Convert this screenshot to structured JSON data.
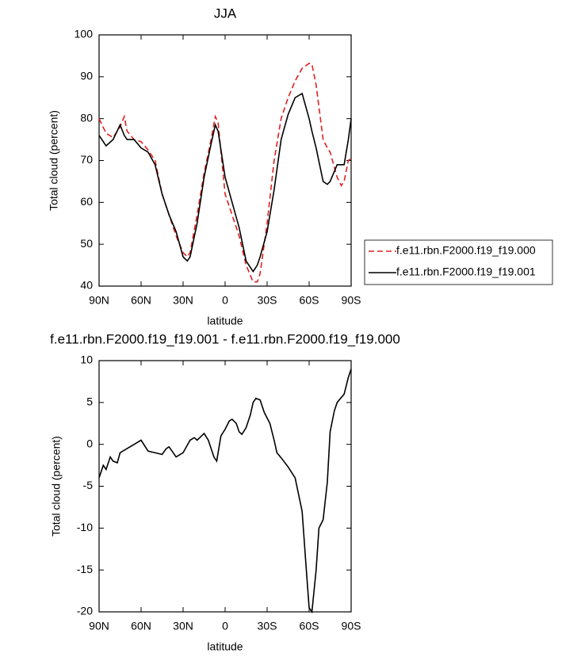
{
  "chart_data": [
    {
      "type": "line",
      "title": "JJA",
      "ylabel": "Total cloud (percent)",
      "xlabel": "latitude",
      "x": [
        90,
        85,
        80,
        75,
        72,
        70,
        65,
        60,
        55,
        50,
        45,
        40,
        35,
        30,
        27,
        25,
        20,
        15,
        10,
        7,
        5,
        0,
        -5,
        -10,
        -15,
        -20,
        -23,
        -25,
        -30,
        -35,
        -40,
        -45,
        -50,
        -55,
        -60,
        -62,
        -65,
        -70,
        -73,
        -75,
        -80,
        -83,
        -85,
        -88,
        -90
      ],
      "series": [
        {
          "name": "f.e11.rbn.F2000.f19_f19.000",
          "color": "#e02020",
          "style": "dashed",
          "values": [
            80,
            76.5,
            75.5,
            78,
            80.5,
            77,
            75,
            74.5,
            72.5,
            70,
            62,
            57,
            52,
            48,
            47,
            48,
            57,
            67,
            75,
            80.5,
            79,
            62,
            57,
            52,
            45,
            41,
            41,
            43,
            55,
            70,
            80,
            85,
            89,
            92,
            93.2,
            93,
            88,
            75,
            73,
            72,
            66,
            64,
            65,
            70,
            70.5
          ]
        },
        {
          "name": "f.e11.rbn.F2000.f19_f19.001",
          "color": "#000000",
          "style": "solid",
          "values": [
            76,
            73.5,
            75,
            78.5,
            76,
            75,
            75,
            73,
            72,
            69,
            62,
            57,
            53,
            47,
            46,
            47,
            55,
            66,
            74,
            78.5,
            77,
            66,
            60,
            54,
            46,
            43.5,
            45,
            47,
            53,
            63,
            75,
            81,
            85,
            86,
            80,
            77,
            73,
            65,
            64.3,
            65,
            69,
            69,
            69,
            75,
            80
          ]
        }
      ],
      "xlim": [
        90,
        -90
      ],
      "xticks": [
        {
          "value": 90,
          "label": "90N"
        },
        {
          "value": 60,
          "label": "60N"
        },
        {
          "value": 30,
          "label": "30N"
        },
        0,
        {
          "value": -30,
          "label": "30S"
        },
        {
          "value": -60,
          "label": "60S"
        },
        {
          "value": -90,
          "label": "90S"
        }
      ],
      "ylim": [
        40,
        100
      ],
      "yticks": [
        40,
        50,
        60,
        70,
        80,
        90,
        100
      ],
      "legend": "outside right"
    },
    {
      "type": "line",
      "title": "f.e11.rbn.F2000.f19_f19.001 - f.e11.rbn.F2000.f19_f19.000",
      "ylabel": "Total cloud (percent)",
      "xlabel": "latitude",
      "x": [
        90,
        87,
        85,
        82,
        80,
        77,
        75,
        70,
        65,
        60,
        55,
        50,
        45,
        42,
        40,
        35,
        30,
        25,
        22,
        20,
        15,
        12,
        8,
        6,
        3,
        0,
        -3,
        -5,
        -8,
        -10,
        -12,
        -15,
        -18,
        -20,
        -22,
        -25,
        -28,
        -32,
        -35,
        -37,
        -40,
        -45,
        -50,
        -55,
        -58,
        -60,
        -62,
        -65,
        -67,
        -70,
        -73,
        -75,
        -78,
        -80,
        -85,
        -88,
        -90
      ],
      "series": [
        {
          "color": "#000000",
          "style": "solid",
          "values": [
            -4,
            -2.5,
            -3,
            -1.5,
            -2,
            -2.2,
            -1,
            -0.5,
            0,
            0.5,
            -0.8,
            -1,
            -1.2,
            -0.5,
            -0.3,
            -1.5,
            -1,
            0.5,
            0.8,
            0.5,
            1.3,
            0.5,
            -1.5,
            -2,
            1,
            1.8,
            2.8,
            3,
            2.5,
            1.5,
            1.2,
            2,
            3.5,
            5,
            5.5,
            5.3,
            3.8,
            2.5,
            0.5,
            -1,
            -1.6,
            -2.7,
            -4,
            -8,
            -15,
            -19.5,
            -20,
            -15,
            -10,
            -9,
            -4.5,
            1.5,
            4,
            5,
            6,
            8,
            9
          ]
        }
      ],
      "xlim": [
        90,
        -90
      ],
      "xticks": [
        {
          "value": 90,
          "label": "90N"
        },
        {
          "value": 60,
          "label": "60N"
        },
        {
          "value": 30,
          "label": "30N"
        },
        0,
        {
          "value": -30,
          "label": "30S"
        },
        {
          "value": -60,
          "label": "60S"
        },
        {
          "value": -90,
          "label": "90S"
        }
      ],
      "ylim": [
        -20,
        10
      ],
      "yticks": [
        -20,
        -15,
        -10,
        -5,
        0,
        5,
        10
      ]
    }
  ]
}
